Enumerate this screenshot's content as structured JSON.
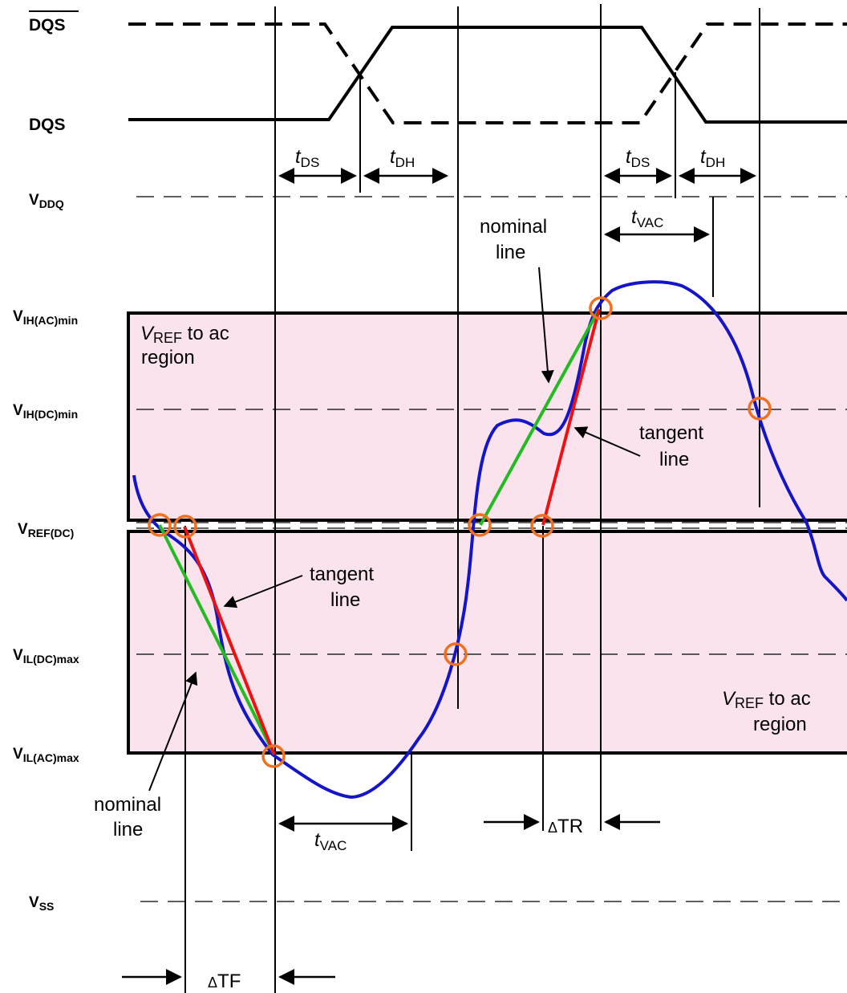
{
  "signals": {
    "dqs_bar": "DQS",
    "dqs": "DQS"
  },
  "levels": {
    "vddq": {
      "main": "V",
      "sub": "DDQ"
    },
    "vih_ac": {
      "main": "V",
      "sub": "IH(AC)min"
    },
    "vih_dc": {
      "main": "V",
      "sub": "IH(DC)min"
    },
    "vref_dc": {
      "main": "V",
      "sub": "REF(DC)"
    },
    "vil_dc": {
      "main": "V",
      "sub": "IL(DC)max"
    },
    "vil_ac": {
      "main": "V",
      "sub": "IL(AC)max"
    },
    "vss": {
      "main": "V",
      "sub": "SS"
    }
  },
  "timing": {
    "t": "t",
    "ds": "DS",
    "dh": "DH",
    "vac": "VAC",
    "delta": "Δ",
    "tr": "TR",
    "tf": "TF"
  },
  "annotations": {
    "region_v": "V",
    "region_ref": "REF",
    "region_rest": " to ac",
    "region_word": "region",
    "nominal": "nominal",
    "tangent": "tangent",
    "line": "line"
  },
  "colors": {
    "waveform": "#1414c8",
    "nominal_line": "#22bb22",
    "tangent_line": "#ee1111",
    "crossing_marker": "#f07020",
    "region_fill": "#fbe3ee"
  }
}
